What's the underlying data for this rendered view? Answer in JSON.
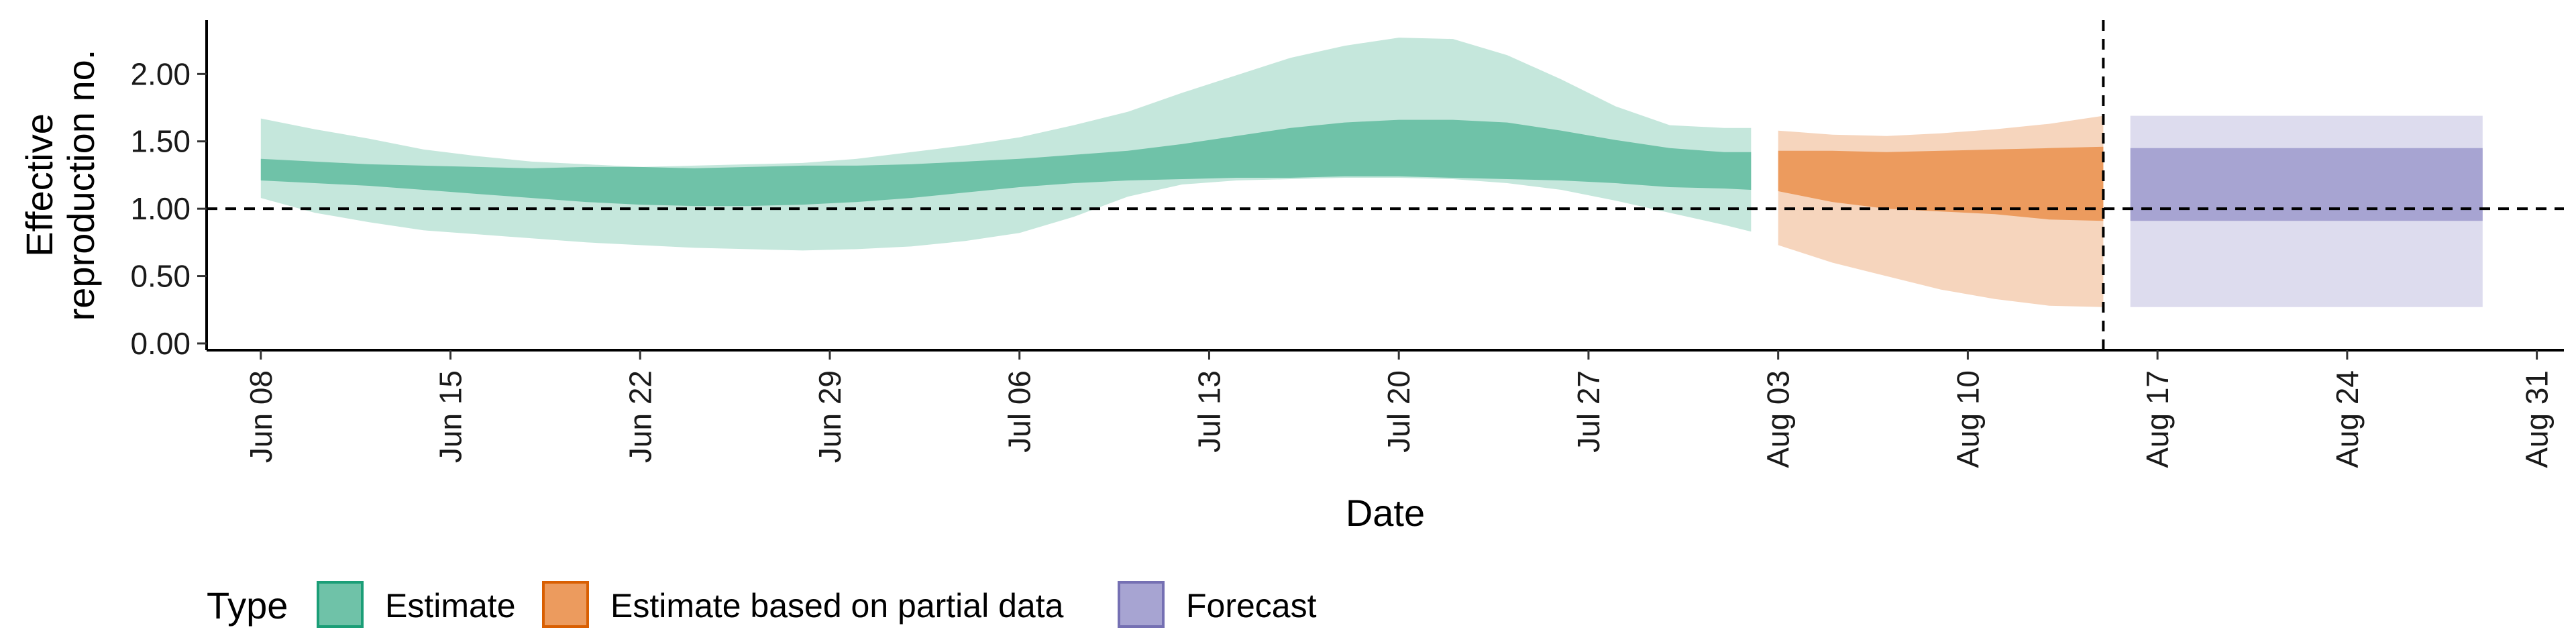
{
  "chart_data": {
    "type": "area",
    "xlabel": "Date",
    "ylabel_lines": [
      "Effective",
      "reproduction no."
    ],
    "x_ticks": [
      "2020-06-08",
      "2020-06-15",
      "2020-06-22",
      "2020-06-29",
      "2020-07-06",
      "2020-07-13",
      "2020-07-20",
      "2020-07-27",
      "2020-08-03",
      "2020-08-10",
      "2020-08-17",
      "2020-08-24",
      "2020-08-31"
    ],
    "x_tick_labels": [
      "Jun 08",
      "Jun 15",
      "Jun 22",
      "Jun 29",
      "Jul 06",
      "Jul 13",
      "Jul 20",
      "Jul 27",
      "Aug 03",
      "Aug 10",
      "Aug 17",
      "Aug 24",
      "Aug 31"
    ],
    "xlim": [
      "2020-06-06",
      "2020-09-01"
    ],
    "y_ticks": [
      0,
      0.5,
      1,
      1.5,
      2
    ],
    "y_tick_labels": [
      "0.00",
      "0.50",
      "1.00",
      "1.50",
      "2.00"
    ],
    "ylim": [
      -0.05,
      2.4
    ],
    "reference_hline": 1.0,
    "reference_vline": "2020-08-15",
    "legend": {
      "title": "Type",
      "position": "bottom-left",
      "items": [
        {
          "label": "Estimate",
          "fill": "#6fc2a8",
          "stroke": "#1b9e77"
        },
        {
          "label": "Estimate based on partial data",
          "fill": "#ec9b5e",
          "stroke": "#d95f02"
        },
        {
          "label": "Forecast",
          "fill": "#a7a4d2",
          "stroke": "#7570b3"
        }
      ]
    },
    "series": [
      {
        "name": "Estimate",
        "outer_color": "#c5e7dc",
        "inner_color": "#6fc2a8",
        "x": [
          "2020-06-08",
          "2020-06-10",
          "2020-06-12",
          "2020-06-14",
          "2020-06-16",
          "2020-06-18",
          "2020-06-20",
          "2020-06-22",
          "2020-06-24",
          "2020-06-26",
          "2020-06-28",
          "2020-06-30",
          "2020-07-02",
          "2020-07-04",
          "2020-07-06",
          "2020-07-08",
          "2020-07-10",
          "2020-07-12",
          "2020-07-14",
          "2020-07-16",
          "2020-07-18",
          "2020-07-20",
          "2020-07-22",
          "2020-07-24",
          "2020-07-26",
          "2020-07-28",
          "2020-07-30",
          "2020-08-01",
          "2020-08-02"
        ],
        "outer_upper": [
          1.67,
          1.59,
          1.52,
          1.44,
          1.39,
          1.35,
          1.33,
          1.31,
          1.32,
          1.33,
          1.34,
          1.37,
          1.42,
          1.47,
          1.53,
          1.62,
          1.72,
          1.86,
          1.99,
          2.12,
          2.21,
          2.27,
          2.26,
          2.14,
          1.96,
          1.76,
          1.62,
          1.6,
          1.6
        ],
        "inner_upper": [
          1.37,
          1.35,
          1.33,
          1.32,
          1.31,
          1.3,
          1.31,
          1.31,
          1.3,
          1.31,
          1.32,
          1.32,
          1.33,
          1.35,
          1.37,
          1.4,
          1.43,
          1.48,
          1.54,
          1.6,
          1.64,
          1.66,
          1.66,
          1.64,
          1.58,
          1.51,
          1.45,
          1.42,
          1.42
        ],
        "inner_lower": [
          1.21,
          1.19,
          1.17,
          1.14,
          1.11,
          1.08,
          1.05,
          1.03,
          1.02,
          1.02,
          1.03,
          1.05,
          1.08,
          1.12,
          1.16,
          1.19,
          1.21,
          1.22,
          1.23,
          1.23,
          1.24,
          1.24,
          1.23,
          1.22,
          1.21,
          1.19,
          1.16,
          1.15,
          1.14
        ],
        "outer_lower": [
          1.08,
          0.97,
          0.9,
          0.84,
          0.81,
          0.78,
          0.75,
          0.73,
          0.71,
          0.7,
          0.69,
          0.7,
          0.72,
          0.76,
          0.82,
          0.94,
          1.09,
          1.18,
          1.21,
          1.22,
          1.23,
          1.23,
          1.22,
          1.19,
          1.14,
          1.06,
          0.97,
          0.88,
          0.83
        ]
      },
      {
        "name": "Estimate based on partial data",
        "outer_color": "#f6d5bd",
        "inner_color": "#ec9b5e",
        "x": [
          "2020-08-03",
          "2020-08-05",
          "2020-08-07",
          "2020-08-09",
          "2020-08-11",
          "2020-08-13",
          "2020-08-15"
        ],
        "outer_upper": [
          1.58,
          1.55,
          1.54,
          1.56,
          1.59,
          1.63,
          1.69
        ],
        "inner_upper": [
          1.43,
          1.43,
          1.42,
          1.43,
          1.44,
          1.45,
          1.46
        ],
        "inner_lower": [
          1.13,
          1.05,
          1.0,
          0.98,
          0.96,
          0.92,
          0.91
        ],
        "outer_lower": [
          0.73,
          0.6,
          0.5,
          0.4,
          0.33,
          0.28,
          0.27
        ]
      },
      {
        "name": "Forecast",
        "outer_color": "#dddcee",
        "inner_color": "#a7a4d2",
        "x": [
          "2020-08-16",
          "2020-08-29"
        ],
        "outer_upper": [
          1.69,
          1.69
        ],
        "inner_upper": [
          1.45,
          1.45
        ],
        "inner_lower": [
          0.91,
          0.91
        ],
        "outer_lower": [
          0.27,
          0.27
        ]
      }
    ]
  }
}
